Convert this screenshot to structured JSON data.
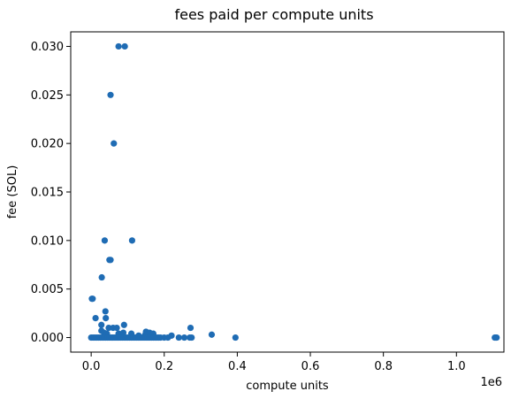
{
  "chart_data": {
    "type": "scatter",
    "title": "fees paid per compute units",
    "xlabel": "compute units",
    "ylabel": "fee (SOL)",
    "x_offset_text": "1e6",
    "xlim": [
      -0.056,
      1.13
    ],
    "ylim": [
      -0.0015,
      0.0315
    ],
    "x_ticks": [
      0.0,
      0.2,
      0.4,
      0.6,
      0.8,
      1.0
    ],
    "x_tick_labels": [
      "0.0",
      "0.2",
      "0.4",
      "0.6",
      "0.8",
      "1.0"
    ],
    "y_ticks": [
      0.0,
      0.005,
      0.01,
      0.015,
      0.02,
      0.025,
      0.03
    ],
    "y_tick_labels": [
      "0.000",
      "0.005",
      "0.010",
      "0.015",
      "0.020",
      "0.025",
      "0.030"
    ],
    "grid": false,
    "legend": "none",
    "marker_color": "#1f6cb4",
    "series": [
      {
        "points": [
          {
            "x": 0.075,
            "y": 0.03
          },
          {
            "x": 0.092,
            "y": 0.03
          },
          {
            "x": 0.053,
            "y": 0.025
          },
          {
            "x": 0.062,
            "y": 0.02
          },
          {
            "x": 0.037,
            "y": 0.01
          },
          {
            "x": 0.112,
            "y": 0.01
          },
          {
            "x": 0.05,
            "y": 0.008
          },
          {
            "x": 0.053,
            "y": 0.008
          },
          {
            "x": 0.029,
            "y": 0.0062
          },
          {
            "x": 0.002,
            "y": 0.004
          },
          {
            "x": 0.004,
            "y": 0.004
          },
          {
            "x": 0.039,
            "y": 0.0027
          },
          {
            "x": 0.012,
            "y": 0.002
          },
          {
            "x": 0.04,
            "y": 0.002
          },
          {
            "x": 0.028,
            "y": 0.0013
          },
          {
            "x": 0.09,
            "y": 0.0013
          },
          {
            "x": 0.048,
            "y": 0.001
          },
          {
            "x": 0.06,
            "y": 0.001
          },
          {
            "x": 0.07,
            "y": 0.001
          },
          {
            "x": 0.272,
            "y": 0.001
          },
          {
            "x": 0.028,
            "y": 0.0007
          },
          {
            "x": 0.035,
            "y": 0.0005
          },
          {
            "x": 0.043,
            "y": 0.0004
          },
          {
            "x": 0.075,
            "y": 0.0004
          },
          {
            "x": 0.088,
            "y": 0.0005
          },
          {
            "x": 0.11,
            "y": 0.0004
          },
          {
            "x": 0.15,
            "y": 0.0006
          },
          {
            "x": 0.16,
            "y": 0.0005
          },
          {
            "x": 0.17,
            "y": 0.0004
          },
          {
            "x": 0.148,
            "y": 0.0003
          },
          {
            "x": 0.13,
            "y": 0.0002
          },
          {
            "x": 0.33,
            "y": 0.0003
          },
          {
            "x": 0.22,
            "y": 0.0002
          },
          {
            "x": 0.0,
            "y": 0.0
          },
          {
            "x": 0.005,
            "y": 0.0
          },
          {
            "x": 0.01,
            "y": 0.0
          },
          {
            "x": 0.015,
            "y": 0.0
          },
          {
            "x": 0.02,
            "y": 0.0
          },
          {
            "x": 0.025,
            "y": 0.0
          },
          {
            "x": 0.03,
            "y": 0.0
          },
          {
            "x": 0.035,
            "y": 0.0
          },
          {
            "x": 0.04,
            "y": 0.0
          },
          {
            "x": 0.045,
            "y": 0.0
          },
          {
            "x": 0.05,
            "y": 0.0
          },
          {
            "x": 0.055,
            "y": 0.0
          },
          {
            "x": 0.06,
            "y": 0.0
          },
          {
            "x": 0.065,
            "y": 0.0
          },
          {
            "x": 0.07,
            "y": 0.0
          },
          {
            "x": 0.075,
            "y": 0.0
          },
          {
            "x": 0.08,
            "y": 0.0
          },
          {
            "x": 0.085,
            "y": 0.0
          },
          {
            "x": 0.09,
            "y": 0.0
          },
          {
            "x": 0.095,
            "y": 0.0
          },
          {
            "x": 0.1,
            "y": 0.0
          },
          {
            "x": 0.105,
            "y": 0.0
          },
          {
            "x": 0.11,
            "y": 0.0
          },
          {
            "x": 0.115,
            "y": 0.0
          },
          {
            "x": 0.12,
            "y": 0.0
          },
          {
            "x": 0.125,
            "y": 0.0
          },
          {
            "x": 0.13,
            "y": 0.0
          },
          {
            "x": 0.135,
            "y": 0.0
          },
          {
            "x": 0.14,
            "y": 0.0
          },
          {
            "x": 0.145,
            "y": 0.0
          },
          {
            "x": 0.15,
            "y": 0.0
          },
          {
            "x": 0.155,
            "y": 0.0
          },
          {
            "x": 0.16,
            "y": 0.0
          },
          {
            "x": 0.165,
            "y": 0.0
          },
          {
            "x": 0.17,
            "y": 0.0
          },
          {
            "x": 0.175,
            "y": 0.0
          },
          {
            "x": 0.18,
            "y": 0.0
          },
          {
            "x": 0.185,
            "y": 0.0
          },
          {
            "x": 0.19,
            "y": 0.0
          },
          {
            "x": 0.2,
            "y": 0.0
          },
          {
            "x": 0.21,
            "y": 0.0
          },
          {
            "x": 0.24,
            "y": 0.0
          },
          {
            "x": 0.255,
            "y": 0.0
          },
          {
            "x": 0.27,
            "y": 0.0
          },
          {
            "x": 0.275,
            "y": 0.0
          },
          {
            "x": 0.395,
            "y": 0.0
          },
          {
            "x": 1.105,
            "y": 0.0
          },
          {
            "x": 1.108,
            "y": 0.0
          },
          {
            "x": 1.11,
            "y": 0.0
          }
        ]
      }
    ]
  }
}
